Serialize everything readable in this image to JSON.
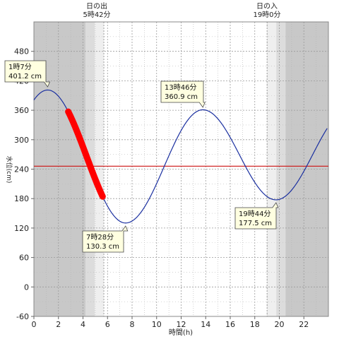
{
  "chart_data": {
    "type": "line",
    "xlabel": "時間(h)",
    "ylabel": "水位(cm)",
    "xlim": [
      0,
      24
    ],
    "ylim": [
      -60,
      540
    ],
    "xticks": [
      0,
      2,
      4,
      6,
      8,
      10,
      12,
      14,
      16,
      18,
      20,
      22
    ],
    "yticks": [
      -60,
      0,
      60,
      120,
      180,
      240,
      300,
      360,
      420,
      480
    ],
    "grid": true,
    "sunrise": {
      "label": "日の出",
      "time_text": "5時42分",
      "hour": 5.7
    },
    "sunset": {
      "label": "日の入",
      "time_text": "19時0分",
      "hour": 19.0
    },
    "reference_level": 246,
    "series": [
      {
        "values_are_extrema": true,
        "points": [
          {
            "x": 1.12,
            "y": 401.2
          },
          {
            "x": 7.47,
            "y": 130.3
          },
          {
            "x": 13.77,
            "y": 360.9
          },
          {
            "x": 19.73,
            "y": 177.5
          }
        ],
        "start": {
          "x": 0,
          "y": 382
        },
        "end": {
          "x": 23.9,
          "y": 334
        }
      }
    ],
    "highlight": {
      "x_start": 2.8,
      "x_end": 5.6,
      "color": "#ff0000"
    },
    "annotations": [
      {
        "time": "1時7分",
        "level": "401.2 cm"
      },
      {
        "time": "7時28分",
        "level": "130.3 cm"
      },
      {
        "time": "13時46分",
        "level": "360.9 cm"
      },
      {
        "time": "19時44分",
        "level": "177.5 cm"
      }
    ]
  },
  "colors": {
    "curve": "#1a2fa0",
    "reference": "#cc1111",
    "highlight": "#ff0000",
    "night": "#c8c8c8",
    "label_fill": "#ffffe0"
  }
}
